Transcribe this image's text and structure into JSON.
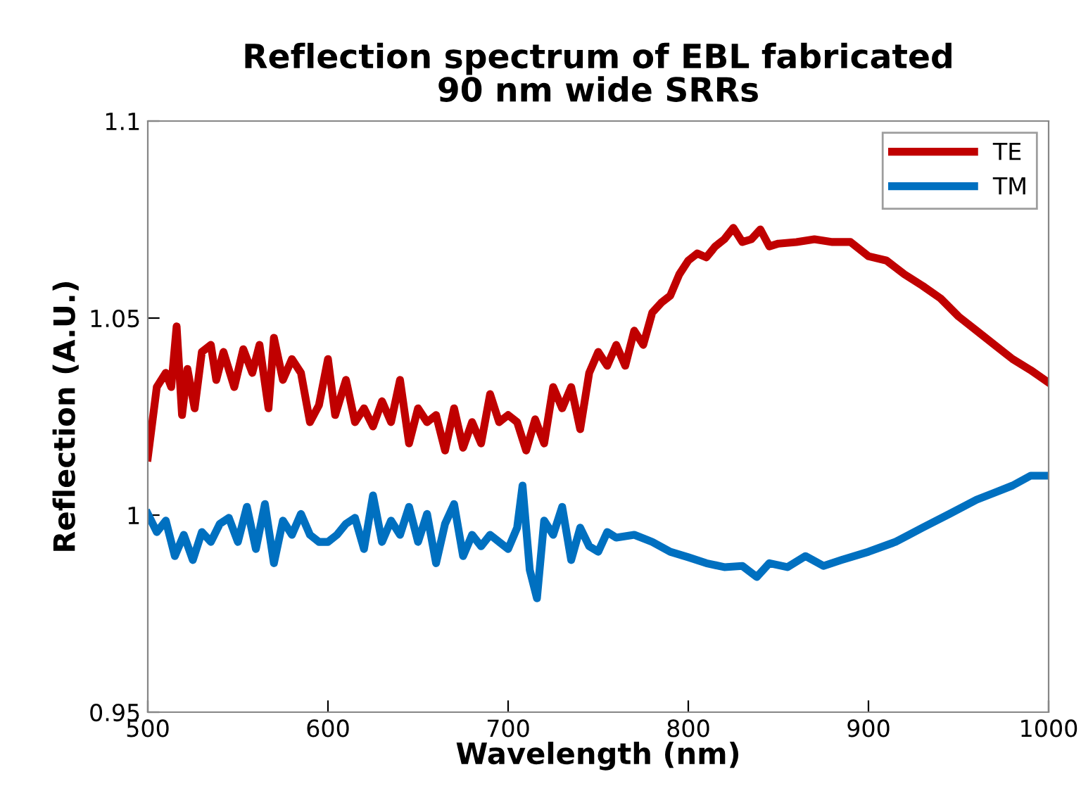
{
  "chart_data": {
    "type": "line",
    "title": "Reflection spectrum of EBL fabricated\n90 nm wide SRRs",
    "xlabel": "Wavelength (nm)",
    "ylabel": "Reflection (A.U.)",
    "xlim": [
      500,
      1000
    ],
    "xticks": [
      500,
      600,
      700,
      800,
      900,
      1000
    ],
    "ylim": [
      0.95,
      1.1
    ],
    "yticks": [
      0.95,
      1,
      1.05,
      1.1
    ],
    "grid": false,
    "legend": "top right",
    "marker": "none",
    "line_style": "solid",
    "series": [
      {
        "name": "TE",
        "color": "#c00000",
        "x": [
          500,
          505,
          510,
          513,
          516,
          519,
          522,
          526,
          530,
          535,
          538,
          542,
          548,
          553,
          558,
          562,
          567,
          570,
          575,
          580,
          585,
          590,
          595,
          600,
          604,
          610,
          615,
          620,
          625,
          630,
          635,
          640,
          645,
          650,
          655,
          660,
          665,
          670,
          675,
          680,
          685,
          690,
          695,
          700,
          705,
          710,
          715,
          720,
          725,
          730,
          735,
          740,
          745,
          750,
          755,
          760,
          765,
          770,
          775,
          780,
          785,
          790,
          795,
          800,
          805,
          810,
          815,
          820,
          825,
          830,
          835,
          840,
          845,
          850,
          860,
          870,
          880,
          890,
          900,
          910,
          920,
          930,
          940,
          950,
          960,
          970,
          980,
          990,
          1000
        ],
        "values": [
          1.0146,
          1.0325,
          1.0361,
          1.0325,
          1.0479,
          1.0254,
          1.0371,
          1.0271,
          1.0414,
          1.0432,
          1.0343,
          1.0414,
          1.0325,
          1.0421,
          1.0361,
          1.0432,
          1.0271,
          1.045,
          1.0343,
          1.0396,
          1.0361,
          1.0236,
          1.0279,
          1.0396,
          1.0254,
          1.0343,
          1.0236,
          1.0271,
          1.0225,
          1.0289,
          1.0236,
          1.0343,
          1.0182,
          1.0271,
          1.0236,
          1.0254,
          1.0164,
          1.0271,
          1.0171,
          1.0236,
          1.0182,
          1.0307,
          1.0236,
          1.0254,
          1.0236,
          1.0164,
          1.0243,
          1.0182,
          1.0325,
          1.0271,
          1.0325,
          1.0218,
          1.0361,
          1.0414,
          1.0379,
          1.0432,
          1.0379,
          1.0468,
          1.0432,
          1.0514,
          1.0539,
          1.0557,
          1.0611,
          1.0646,
          1.0664,
          1.0654,
          1.0682,
          1.07,
          1.0729,
          1.0693,
          1.07,
          1.0725,
          1.0682,
          1.0689,
          1.0693,
          1.07,
          1.0693,
          1.0693,
          1.0657,
          1.0646,
          1.0611,
          1.0582,
          1.055,
          1.0504,
          1.0468,
          1.0432,
          1.0396,
          1.0368,
          1.0336
        ]
      },
      {
        "name": "TM",
        "color": "#0070c0",
        "x": [
          500,
          505,
          510,
          515,
          520,
          525,
          530,
          535,
          540,
          545,
          550,
          555,
          560,
          565,
          570,
          575,
          580,
          585,
          590,
          595,
          600,
          605,
          610,
          615,
          620,
          625,
          630,
          635,
          640,
          645,
          650,
          655,
          660,
          665,
          670,
          675,
          680,
          685,
          690,
          695,
          700,
          705,
          708,
          712,
          716,
          720,
          725,
          730,
          735,
          740,
          745,
          750,
          755,
          760,
          770,
          780,
          790,
          800,
          810,
          820,
          830,
          838,
          845,
          855,
          865,
          875,
          885,
          900,
          915,
          930,
          945,
          960,
          970,
          980,
          990,
          1000
        ],
        "values": [
          1.0003,
          0.9957,
          0.9986,
          0.9896,
          0.995,
          0.9886,
          0.9957,
          0.9932,
          0.9978,
          0.9993,
          0.9932,
          1.0021,
          0.9914,
          1.0028,
          0.9878,
          0.9986,
          0.995,
          1.0003,
          0.995,
          0.9932,
          0.9932,
          0.995,
          0.9978,
          0.9993,
          0.9914,
          1.005,
          0.9932,
          0.9986,
          0.995,
          1.0021,
          0.9932,
          1.0003,
          0.9878,
          0.9978,
          1.0028,
          0.9896,
          0.995,
          0.9921,
          0.995,
          0.9932,
          0.9914,
          0.9968,
          1.0075,
          0.9861,
          0.9789,
          0.9986,
          0.995,
          1.0021,
          0.9886,
          0.9968,
          0.9921,
          0.9907,
          0.9957,
          0.9943,
          0.995,
          0.9932,
          0.9907,
          0.9893,
          0.9878,
          0.9868,
          0.9871,
          0.9843,
          0.9878,
          0.9868,
          0.9896,
          0.9871,
          0.9886,
          0.9907,
          0.9932,
          0.9968,
          1.0003,
          1.0039,
          1.0057,
          1.0075,
          1.01,
          1.01
        ]
      }
    ]
  }
}
